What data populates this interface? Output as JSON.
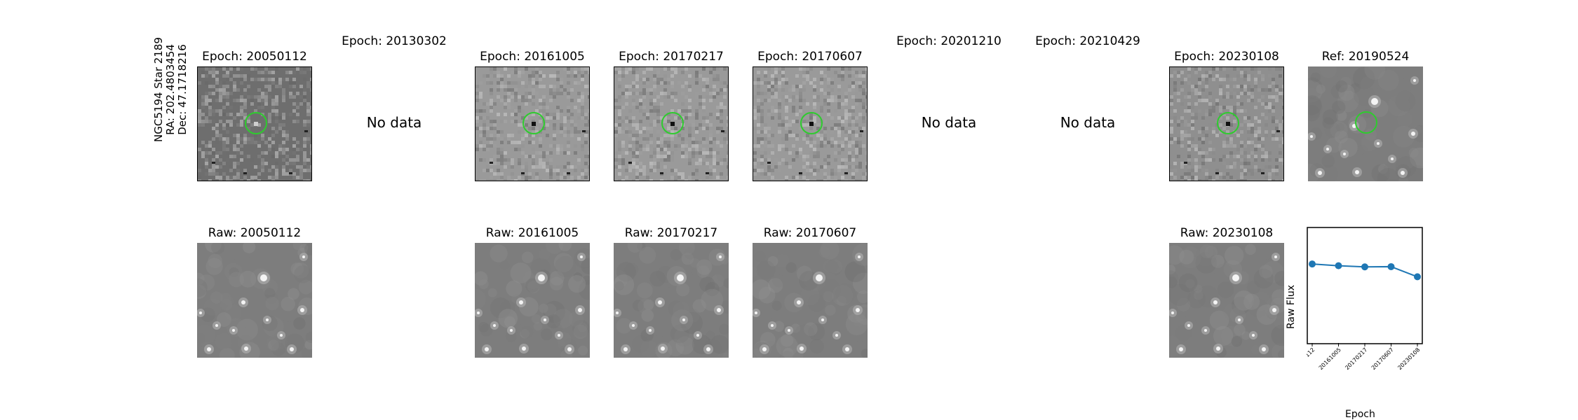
{
  "star": {
    "name": "NGC5194 Star 2189",
    "ra": "RA: 202.4803454",
    "dec": "Dec: 47.1718216"
  },
  "epoch_row": [
    {
      "title": "Epoch: 20050112",
      "status": "diff",
      "bg": "#6e6e6e"
    },
    {
      "title": "Epoch: 20130302",
      "status": "no_data",
      "message": "No data"
    },
    {
      "title": "Epoch: 20161005",
      "status": "diff",
      "bg": "#9a9a9a"
    },
    {
      "title": "Epoch: 20170217",
      "status": "diff",
      "bg": "#9a9a9a"
    },
    {
      "title": "Epoch: 20170607",
      "status": "diff",
      "bg": "#9a9a9a"
    },
    {
      "title": "Epoch: 20201210",
      "status": "no_data",
      "message": "No data"
    },
    {
      "title": "Epoch: 20210429",
      "status": "no_data",
      "message": "No data"
    },
    {
      "title": "Epoch: 20230108",
      "status": "diff",
      "bg": "#8f8f8f"
    },
    {
      "title": "Ref: 20190524",
      "status": "ref",
      "bg": "#7c7c7c"
    }
  ],
  "raw_row": [
    {
      "title": "Raw: 20050112"
    },
    {
      "title": "Raw: 20161005"
    },
    {
      "title": "Raw: 20170217"
    },
    {
      "title": "Raw: 20170607"
    },
    {
      "title": "Raw: 20230108"
    }
  ],
  "colors": {
    "marker_circle": "#2ecc2e",
    "line": "#1f77b4"
  },
  "chart_data": {
    "type": "line",
    "x": [
      "20050112",
      "20161005",
      "20170217",
      "20170607",
      "20230108"
    ],
    "values": [
      0.68,
      0.665,
      0.655,
      0.657,
      0.57
    ],
    "xlabel": "Epoch",
    "ylabel": "Raw Flux",
    "ylim": [
      0,
      1
    ]
  }
}
